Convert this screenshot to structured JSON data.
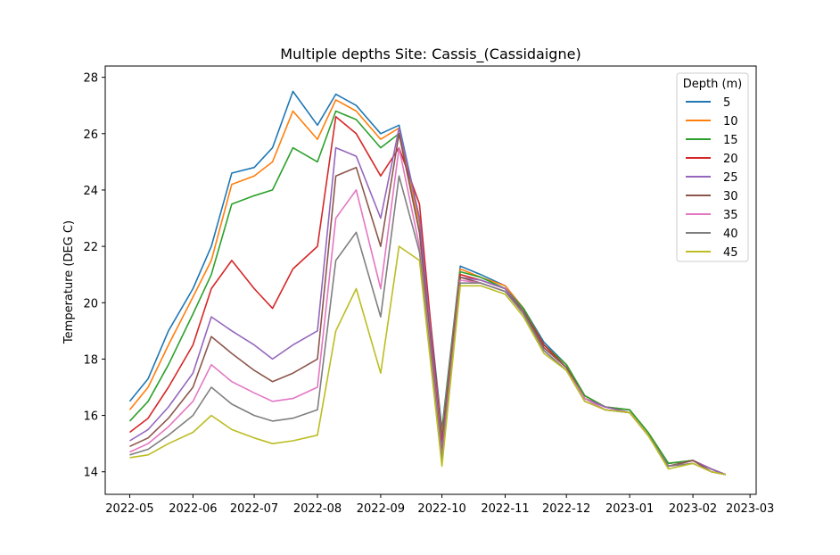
{
  "chart_data": {
    "type": "line",
    "title": "Multiple depths Site: Cassis_(Cassidaigne)",
    "xlabel": "",
    "ylabel": "Temperature (DEG C)",
    "xlim": [
      "2022-04-19",
      "2023-03-04"
    ],
    "ylim": [
      13.2,
      28.4
    ],
    "x_ticks": [
      "2022-05",
      "2022-06",
      "2022-07",
      "2022-08",
      "2022-09",
      "2022-10",
      "2022-11",
      "2022-12",
      "2023-01",
      "2023-02",
      "2023-03"
    ],
    "y_ticks": [
      14,
      16,
      18,
      20,
      22,
      24,
      26,
      28
    ],
    "grid": false,
    "legend": {
      "title": "Depth (m)",
      "placement": "top-right"
    },
    "series": [
      {
        "name": "5",
        "color": "#1f77b4",
        "x": [
          "2022-05-01",
          "2022-05-10",
          "2022-05-20",
          "2022-06-01",
          "2022-06-10",
          "2022-06-20",
          "2022-07-01",
          "2022-07-10",
          "2022-07-20",
          "2022-08-01",
          "2022-08-10",
          "2022-08-20",
          "2022-09-01",
          "2022-09-10",
          "2022-09-20",
          "2022-10-01",
          "2022-10-10",
          "2022-10-20",
          "2022-11-01",
          "2022-11-10",
          "2022-11-20",
          "2022-12-01",
          "2022-12-10",
          "2022-12-20",
          "2023-01-01",
          "2023-01-10",
          "2023-01-20",
          "2023-02-01",
          "2023-02-10",
          "2023-02-17"
        ],
        "y": [
          16.5,
          17.3,
          19.0,
          20.5,
          22.0,
          24.6,
          24.8,
          25.5,
          27.5,
          26.3,
          27.4,
          27.0,
          26.0,
          26.3,
          23.0,
          15.5,
          21.3,
          21.0,
          20.6,
          19.8,
          18.6,
          17.8,
          16.7,
          16.3,
          16.2,
          15.4,
          14.3,
          14.4,
          14.1,
          13.9
        ]
      },
      {
        "name": "10",
        "color": "#ff7f0e",
        "x": [
          "2022-05-01",
          "2022-05-10",
          "2022-05-20",
          "2022-06-01",
          "2022-06-10",
          "2022-06-20",
          "2022-07-01",
          "2022-07-10",
          "2022-07-20",
          "2022-08-01",
          "2022-08-10",
          "2022-08-20",
          "2022-09-01",
          "2022-09-10",
          "2022-09-20",
          "2022-10-01",
          "2022-10-10",
          "2022-10-20",
          "2022-11-01",
          "2022-11-10",
          "2022-11-20",
          "2022-12-01",
          "2022-12-10",
          "2022-12-20",
          "2023-01-01",
          "2023-01-10",
          "2023-01-20",
          "2023-02-01",
          "2023-02-10",
          "2023-02-17"
        ],
        "y": [
          16.2,
          17.0,
          18.5,
          20.2,
          21.5,
          24.2,
          24.5,
          25.0,
          26.8,
          25.8,
          27.2,
          26.8,
          25.8,
          26.2,
          22.8,
          15.3,
          21.2,
          20.9,
          20.6,
          19.8,
          18.5,
          17.8,
          16.7,
          16.3,
          16.2,
          15.4,
          14.3,
          14.4,
          14.1,
          13.9
        ]
      },
      {
        "name": "15",
        "color": "#2ca02c",
        "x": [
          "2022-05-01",
          "2022-05-10",
          "2022-05-20",
          "2022-06-01",
          "2022-06-10",
          "2022-06-20",
          "2022-07-01",
          "2022-07-10",
          "2022-07-20",
          "2022-08-01",
          "2022-08-10",
          "2022-08-20",
          "2022-09-01",
          "2022-09-10",
          "2022-09-20",
          "2022-10-01",
          "2022-10-10",
          "2022-10-20",
          "2022-11-01",
          "2022-11-10",
          "2022-11-20",
          "2022-12-01",
          "2022-12-10",
          "2022-12-20",
          "2023-01-01",
          "2023-01-10",
          "2023-01-20",
          "2023-02-01",
          "2023-02-10",
          "2023-02-17"
        ],
        "y": [
          15.8,
          16.5,
          17.8,
          19.6,
          21.0,
          23.5,
          23.8,
          24.0,
          25.5,
          25.0,
          26.8,
          26.5,
          25.5,
          26.0,
          22.5,
          15.2,
          21.1,
          20.9,
          20.5,
          19.8,
          18.5,
          17.8,
          16.7,
          16.3,
          16.2,
          15.4,
          14.3,
          14.4,
          14.1,
          13.9
        ]
      },
      {
        "name": "20",
        "color": "#d62728",
        "x": [
          "2022-05-01",
          "2022-05-10",
          "2022-05-20",
          "2022-06-01",
          "2022-06-10",
          "2022-06-20",
          "2022-07-01",
          "2022-07-10",
          "2022-07-20",
          "2022-08-01",
          "2022-08-10",
          "2022-08-20",
          "2022-09-01",
          "2022-09-10",
          "2022-09-20",
          "2022-10-01",
          "2022-10-10",
          "2022-10-20",
          "2022-11-01",
          "2022-11-10",
          "2022-11-20",
          "2022-12-01",
          "2022-12-10",
          "2022-12-20",
          "2023-01-01",
          "2023-01-10",
          "2023-01-20",
          "2023-02-01",
          "2023-02-10",
          "2023-02-17"
        ],
        "y": [
          15.4,
          15.9,
          17.0,
          18.5,
          20.5,
          21.5,
          20.5,
          19.8,
          21.2,
          22.0,
          26.6,
          26.0,
          24.5,
          25.5,
          23.5,
          15.0,
          21.0,
          20.8,
          20.5,
          19.7,
          18.5,
          17.7,
          16.6,
          16.3,
          16.1,
          15.3,
          14.2,
          14.4,
          14.1,
          13.9
        ]
      },
      {
        "name": "25",
        "color": "#9467bd",
        "x": [
          "2022-05-01",
          "2022-05-10",
          "2022-05-20",
          "2022-06-01",
          "2022-06-10",
          "2022-06-20",
          "2022-07-01",
          "2022-07-10",
          "2022-07-20",
          "2022-08-01",
          "2022-08-10",
          "2022-08-20",
          "2022-09-01",
          "2022-09-10",
          "2022-09-20",
          "2022-10-01",
          "2022-10-10",
          "2022-10-20",
          "2022-11-01",
          "2022-11-10",
          "2022-11-20",
          "2022-12-01",
          "2022-12-10",
          "2022-12-20",
          "2023-01-01",
          "2023-01-10",
          "2023-01-20",
          "2023-02-01",
          "2023-02-10",
          "2023-02-17"
        ],
        "y": [
          15.1,
          15.5,
          16.3,
          17.5,
          19.5,
          19.0,
          18.5,
          18.0,
          18.5,
          19.0,
          25.5,
          25.2,
          23.0,
          26.2,
          23.0,
          14.8,
          20.9,
          20.8,
          20.5,
          19.7,
          18.4,
          17.7,
          16.6,
          16.3,
          16.1,
          15.3,
          14.2,
          14.4,
          14.1,
          13.9
        ]
      },
      {
        "name": "30",
        "color": "#8c564b",
        "x": [
          "2022-05-01",
          "2022-05-10",
          "2022-05-20",
          "2022-06-01",
          "2022-06-10",
          "2022-06-20",
          "2022-07-01",
          "2022-07-10",
          "2022-07-20",
          "2022-08-01",
          "2022-08-10",
          "2022-08-20",
          "2022-09-01",
          "2022-09-10",
          "2022-09-20",
          "2022-10-01",
          "2022-10-10",
          "2022-10-20",
          "2022-11-01",
          "2022-11-10",
          "2022-11-20",
          "2022-12-01",
          "2022-12-10",
          "2022-12-20",
          "2023-01-01",
          "2023-01-10",
          "2023-01-20",
          "2023-02-01",
          "2023-02-10",
          "2023-02-17"
        ],
        "y": [
          14.9,
          15.2,
          15.9,
          17.0,
          18.8,
          18.2,
          17.6,
          17.2,
          17.5,
          18.0,
          24.5,
          24.8,
          22.0,
          26.0,
          22.5,
          14.6,
          20.9,
          20.7,
          20.4,
          19.7,
          18.4,
          17.7,
          16.6,
          16.2,
          16.1,
          15.3,
          14.2,
          14.4,
          14.0,
          13.9
        ]
      },
      {
        "name": "35",
        "color": "#e377c2",
        "x": [
          "2022-05-01",
          "2022-05-10",
          "2022-05-20",
          "2022-06-01",
          "2022-06-10",
          "2022-06-20",
          "2022-07-01",
          "2022-07-10",
          "2022-07-20",
          "2022-08-01",
          "2022-08-10",
          "2022-08-20",
          "2022-09-01",
          "2022-09-10",
          "2022-09-20",
          "2022-10-01",
          "2022-10-10",
          "2022-10-20",
          "2022-11-01",
          "2022-11-10",
          "2022-11-20",
          "2022-12-01",
          "2022-12-10",
          "2022-12-20",
          "2023-01-01",
          "2023-01-10",
          "2023-01-20",
          "2023-02-01",
          "2023-02-10",
          "2023-02-17"
        ],
        "y": [
          14.7,
          15.0,
          15.6,
          16.5,
          17.8,
          17.2,
          16.8,
          16.5,
          16.6,
          17.0,
          23.0,
          24.0,
          20.5,
          25.5,
          22.0,
          14.5,
          20.8,
          20.7,
          20.4,
          19.6,
          18.3,
          17.6,
          16.6,
          16.2,
          16.1,
          15.3,
          14.2,
          14.3,
          14.0,
          13.9
        ]
      },
      {
        "name": "40",
        "color": "#7f7f7f",
        "x": [
          "2022-05-01",
          "2022-05-10",
          "2022-05-20",
          "2022-06-01",
          "2022-06-10",
          "2022-06-20",
          "2022-07-01",
          "2022-07-10",
          "2022-07-20",
          "2022-08-01",
          "2022-08-10",
          "2022-08-20",
          "2022-09-01",
          "2022-09-10",
          "2022-09-20",
          "2022-10-01",
          "2022-10-10",
          "2022-10-20",
          "2022-11-01",
          "2022-11-10",
          "2022-11-20",
          "2022-12-01",
          "2022-12-10",
          "2022-12-20",
          "2023-01-01",
          "2023-01-10",
          "2023-01-20",
          "2023-02-01",
          "2023-02-10",
          "2023-02-17"
        ],
        "y": [
          14.6,
          14.8,
          15.3,
          16.0,
          17.0,
          16.4,
          16.0,
          15.8,
          15.9,
          16.2,
          21.5,
          22.5,
          19.5,
          24.5,
          21.8,
          14.4,
          20.7,
          20.7,
          20.4,
          19.6,
          18.3,
          17.6,
          16.5,
          16.2,
          16.1,
          15.3,
          14.2,
          14.3,
          14.0,
          13.9
        ]
      },
      {
        "name": "45",
        "color": "#bcbd22",
        "x": [
          "2022-05-01",
          "2022-05-10",
          "2022-05-20",
          "2022-06-01",
          "2022-06-10",
          "2022-06-20",
          "2022-07-01",
          "2022-07-10",
          "2022-07-20",
          "2022-08-01",
          "2022-08-10",
          "2022-08-20",
          "2022-09-01",
          "2022-09-10",
          "2022-09-20",
          "2022-10-01",
          "2022-10-10",
          "2022-10-20",
          "2022-11-01",
          "2022-11-10",
          "2022-11-20",
          "2022-12-01",
          "2022-12-10",
          "2022-12-20",
          "2023-01-01",
          "2023-01-10",
          "2023-01-20",
          "2023-02-01",
          "2023-02-10",
          "2023-02-17"
        ],
        "y": [
          14.5,
          14.6,
          15.0,
          15.4,
          16.0,
          15.5,
          15.2,
          15.0,
          15.1,
          15.3,
          19.0,
          20.5,
          17.5,
          22.0,
          21.5,
          14.2,
          20.6,
          20.6,
          20.3,
          19.5,
          18.2,
          17.6,
          16.5,
          16.2,
          16.1,
          15.3,
          14.1,
          14.3,
          14.0,
          13.9
        ]
      }
    ]
  }
}
